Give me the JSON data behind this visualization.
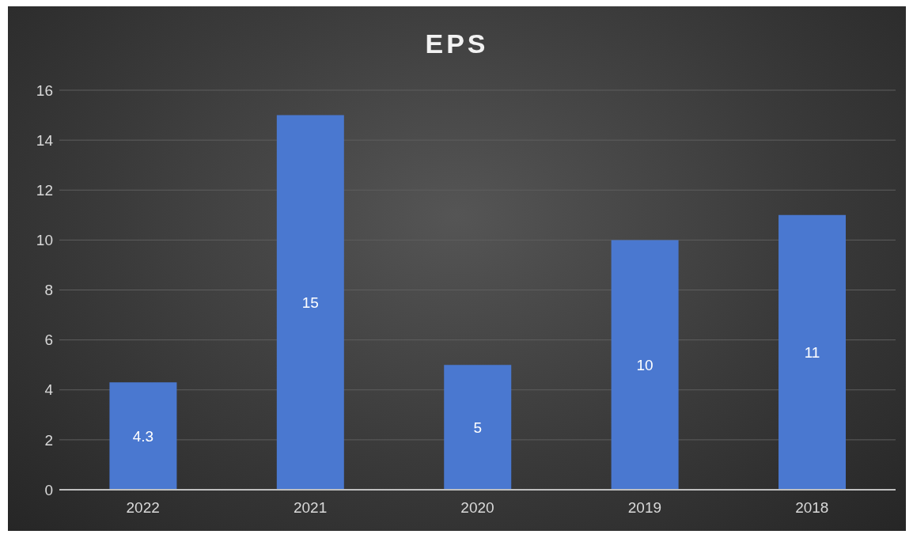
{
  "chart_data": {
    "type": "bar",
    "title": "EPS",
    "categories": [
      "2022",
      "2021",
      "2020",
      "2019",
      "2018"
    ],
    "values": [
      4.3,
      15,
      5,
      10,
      11
    ],
    "color": "#4a78d0",
    "ylim": [
      0,
      16
    ],
    "yticks": [
      0,
      2,
      4,
      6,
      8,
      10,
      12,
      14,
      16
    ],
    "grid": "y",
    "data_labels": true
  }
}
